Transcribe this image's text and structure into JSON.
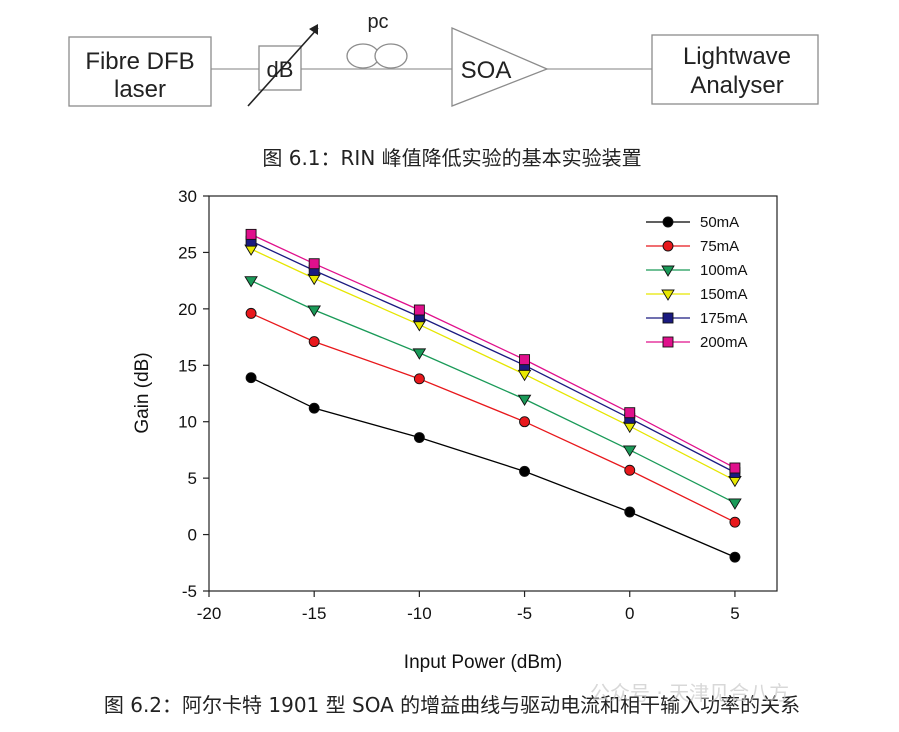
{
  "diagram": {
    "laser_label_line1": "Fibre DFB",
    "laser_label_line2": "laser",
    "attenuator_label": "dB",
    "pc_label": "pc",
    "soa_label": "SOA",
    "analyser_label_line1": "Lightwave",
    "analyser_label_line2": "Analyser",
    "caption": "图 6.1：RIN 峰值降低实验的基本实验装置"
  },
  "figure_caption": "图 6.2：阿尔卡特 1901 型 SOA 的增益曲线与驱动电流和相干输入功率的关系",
  "watermark": "公众号 · 天津见合八方",
  "chart_data": {
    "type": "line",
    "title": "",
    "xlabel": "Input Power (dBm)",
    "ylabel": "Gain (dB)",
    "xlim": [
      -20,
      7
    ],
    "ylim": [
      -5,
      30
    ],
    "xticks": [
      -20,
      -15,
      -10,
      -5,
      0,
      5
    ],
    "yticks": [
      -5,
      0,
      5,
      10,
      15,
      20,
      25,
      30
    ],
    "grid": false,
    "legend_position": "top-right",
    "x": [
      -18,
      -15,
      -10,
      -5,
      0,
      5
    ],
    "series": [
      {
        "name": "50mA",
        "color": "#000000",
        "marker": "circle",
        "values": [
          13.9,
          11.2,
          8.6,
          5.6,
          2.0,
          -2.0
        ]
      },
      {
        "name": "75mA",
        "color": "#e8181c",
        "marker": "circle",
        "values": [
          19.6,
          17.1,
          13.8,
          10.0,
          5.7,
          1.1
        ]
      },
      {
        "name": "100mA",
        "color": "#1a9a58",
        "marker": "triangle-down",
        "values": [
          22.5,
          19.9,
          16.1,
          12.0,
          7.5,
          2.8
        ]
      },
      {
        "name": "150mA",
        "color": "#e8e800",
        "marker": "triangle-down",
        "values": [
          25.3,
          22.7,
          18.6,
          14.2,
          9.6,
          4.8
        ]
      },
      {
        "name": "175mA",
        "color": "#1a1a80",
        "marker": "square",
        "values": [
          26.0,
          23.4,
          19.3,
          15.0,
          10.3,
          5.5
        ]
      },
      {
        "name": "200mA",
        "color": "#e0108c",
        "marker": "square",
        "values": [
          26.6,
          24.0,
          19.9,
          15.5,
          10.8,
          5.9
        ]
      }
    ]
  }
}
